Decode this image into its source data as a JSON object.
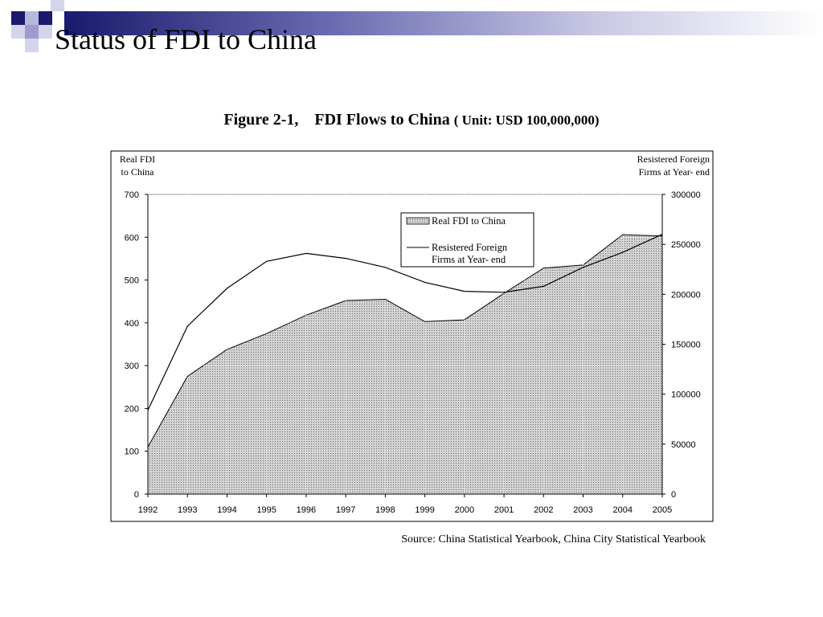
{
  "slide": {
    "title": "Status of FDI to China"
  },
  "figure": {
    "caption": "Figure 2-1,　FDI Flows to China",
    "unit": "( Unit: USD 100,000,000)",
    "source": "Source: China Statistical Yearbook, China City Statistical Yearbook"
  },
  "colors": {
    "deco_navy": "#1a1a6e",
    "deco_lavender": "#9c9cd0",
    "area_fill": "#c8c8c8",
    "line": "#000000"
  },
  "chart_data": {
    "type": "area",
    "title": "",
    "categories": [
      "1992",
      "1993",
      "1994",
      "1995",
      "1996",
      "1997",
      "1998",
      "1999",
      "2000",
      "2001",
      "2002",
      "2003",
      "2004",
      "2005"
    ],
    "left_axis_title": [
      "Real FDI",
      "to China"
    ],
    "right_axis_title": [
      "Resistered Foreign",
      "Firms at Year- end"
    ],
    "left_ylim": [
      0,
      700
    ],
    "left_ticks": [
      0,
      100,
      200,
      300,
      400,
      500,
      600,
      700
    ],
    "right_ylim": [
      0,
      300000
    ],
    "right_ticks": [
      0,
      50000,
      100000,
      150000,
      200000,
      250000,
      300000
    ],
    "grid": true,
    "legend_position": "top-center",
    "series": [
      {
        "name": "Real FDI to China",
        "kind": "area",
        "axis": "left",
        "values": [
          110,
          275,
          338,
          375,
          418,
          452,
          455,
          403,
          407,
          469,
          528,
          535,
          606,
          603
        ]
      },
      {
        "name": "Resistered Foreign\nFirms at Year- end",
        "kind": "line",
        "axis": "right",
        "values": [
          84000,
          168000,
          206000,
          233000,
          241000,
          236000,
          227000,
          212000,
          203000,
          202000,
          208000,
          227000,
          242000,
          260000
        ]
      }
    ],
    "legend_labels": {
      "area_line1": "Real FDI to China",
      "line_line1": "Resistered Foreign",
      "line_line2": "Firms at Year- end"
    }
  }
}
